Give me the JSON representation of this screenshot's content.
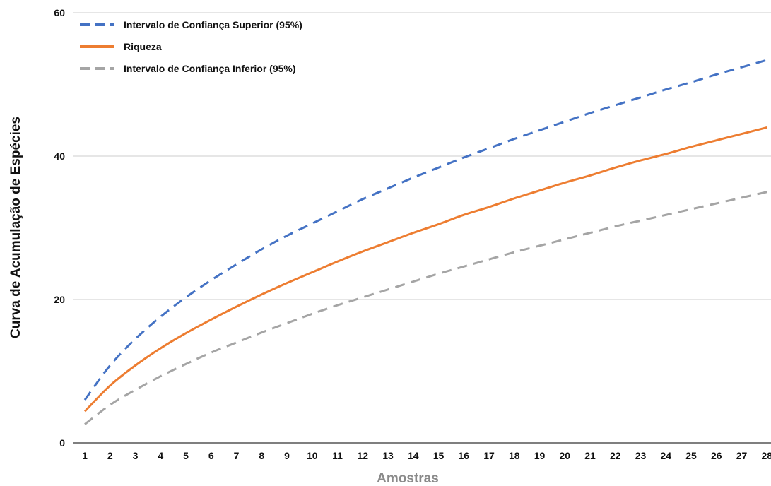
{
  "chart_data": {
    "type": "line",
    "title": "",
    "xlabel": "Amostras",
    "ylabel": "Curva de Acumulação de Espécies",
    "categories": [
      "1",
      "2",
      "3",
      "4",
      "5",
      "6",
      "7",
      "8",
      "9",
      "10",
      "11",
      "12",
      "13",
      "14",
      "15",
      "16",
      "17",
      "18",
      "19",
      "20",
      "21",
      "22",
      "23",
      "24",
      "25",
      "26",
      "27",
      "28"
    ],
    "yticks": [
      "0",
      "20",
      "40",
      "60"
    ],
    "ylim": [
      0,
      60
    ],
    "grid": "horizontal",
    "legend_position": "top-left",
    "series": [
      {
        "name": "Intervalo de Confiança Superior (95%)",
        "color": "#4472c4",
        "style": "dashed",
        "values": [
          6.0,
          10.8,
          14.5,
          17.6,
          20.3,
          22.7,
          24.9,
          27.0,
          28.9,
          30.6,
          32.3,
          34.0,
          35.5,
          37.0,
          38.4,
          39.8,
          41.1,
          42.4,
          43.6,
          44.8,
          46.0,
          47.1,
          48.2,
          49.3,
          50.3,
          51.4,
          52.4,
          53.4
        ]
      },
      {
        "name": "Riqueza",
        "color": "#ed7d31",
        "style": "solid",
        "values": [
          4.4,
          8.0,
          10.8,
          13.2,
          15.3,
          17.2,
          19.0,
          20.7,
          22.3,
          23.8,
          25.3,
          26.7,
          28.0,
          29.3,
          30.5,
          31.8,
          32.9,
          34.1,
          35.2,
          36.3,
          37.3,
          38.4,
          39.4,
          40.3,
          41.3,
          42.2,
          43.1,
          44.0
        ]
      },
      {
        "name": "Intervalo de Confiança Inferior (95%)",
        "color": "#a5a5a5",
        "style": "dashed",
        "values": [
          2.6,
          5.3,
          7.4,
          9.3,
          11.0,
          12.6,
          14.0,
          15.4,
          16.7,
          18.0,
          19.2,
          20.3,
          21.4,
          22.5,
          23.6,
          24.6,
          25.6,
          26.6,
          27.5,
          28.4,
          29.3,
          30.2,
          31.0,
          31.8,
          32.6,
          33.4,
          34.2,
          35.0
        ]
      }
    ]
  }
}
